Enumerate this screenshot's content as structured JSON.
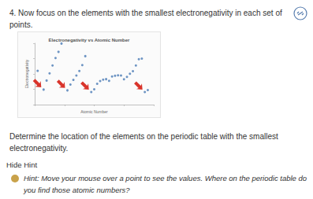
{
  "question": {
    "number": "4.",
    "text": "Now focus on the elements with the smallest electronegativity in each set of points."
  },
  "chart_data": {
    "type": "scatter",
    "title": "Electronegativity vs Atomic Number",
    "x_label": "Atomic Number",
    "y_label": "Electronegativity",
    "x": [
      1,
      3,
      4,
      5,
      6,
      7,
      8,
      9,
      11,
      12,
      13,
      14,
      15,
      16,
      17,
      19,
      20,
      21,
      22,
      23,
      24,
      25,
      26,
      27,
      28,
      29,
      30,
      31,
      32,
      33,
      34,
      35,
      36,
      37,
      38
    ],
    "values": [
      2.2,
      0.98,
      1.57,
      2.04,
      2.55,
      3.04,
      3.44,
      3.98,
      0.93,
      1.31,
      1.61,
      1.9,
      2.19,
      2.58,
      3.16,
      0.82,
      1.0,
      1.36,
      1.54,
      1.63,
      1.66,
      1.55,
      1.83,
      1.88,
      1.91,
      1.9,
      1.65,
      1.81,
      2.01,
      2.18,
      2.55,
      2.96,
      3.0,
      0.82,
      0.95
    ],
    "color": "#4a7ab5",
    "marker": "circle",
    "xlim": [
      0,
      40
    ],
    "xticks": [
      0,
      10,
      20,
      30,
      40
    ],
    "ylim": [
      0,
      4
    ],
    "yticks": [
      0,
      1,
      2,
      3,
      4
    ],
    "grid": false,
    "tick_labels": false
  },
  "prompt": "Determine the location of the elements on the periodic table with the smallest electronegativity.",
  "hint": {
    "toggle": "Hide Hint",
    "label": "Hint:",
    "text": "Move your mouse over a point to see the values. Where on the periodic table do you find those atomic numbers?"
  }
}
